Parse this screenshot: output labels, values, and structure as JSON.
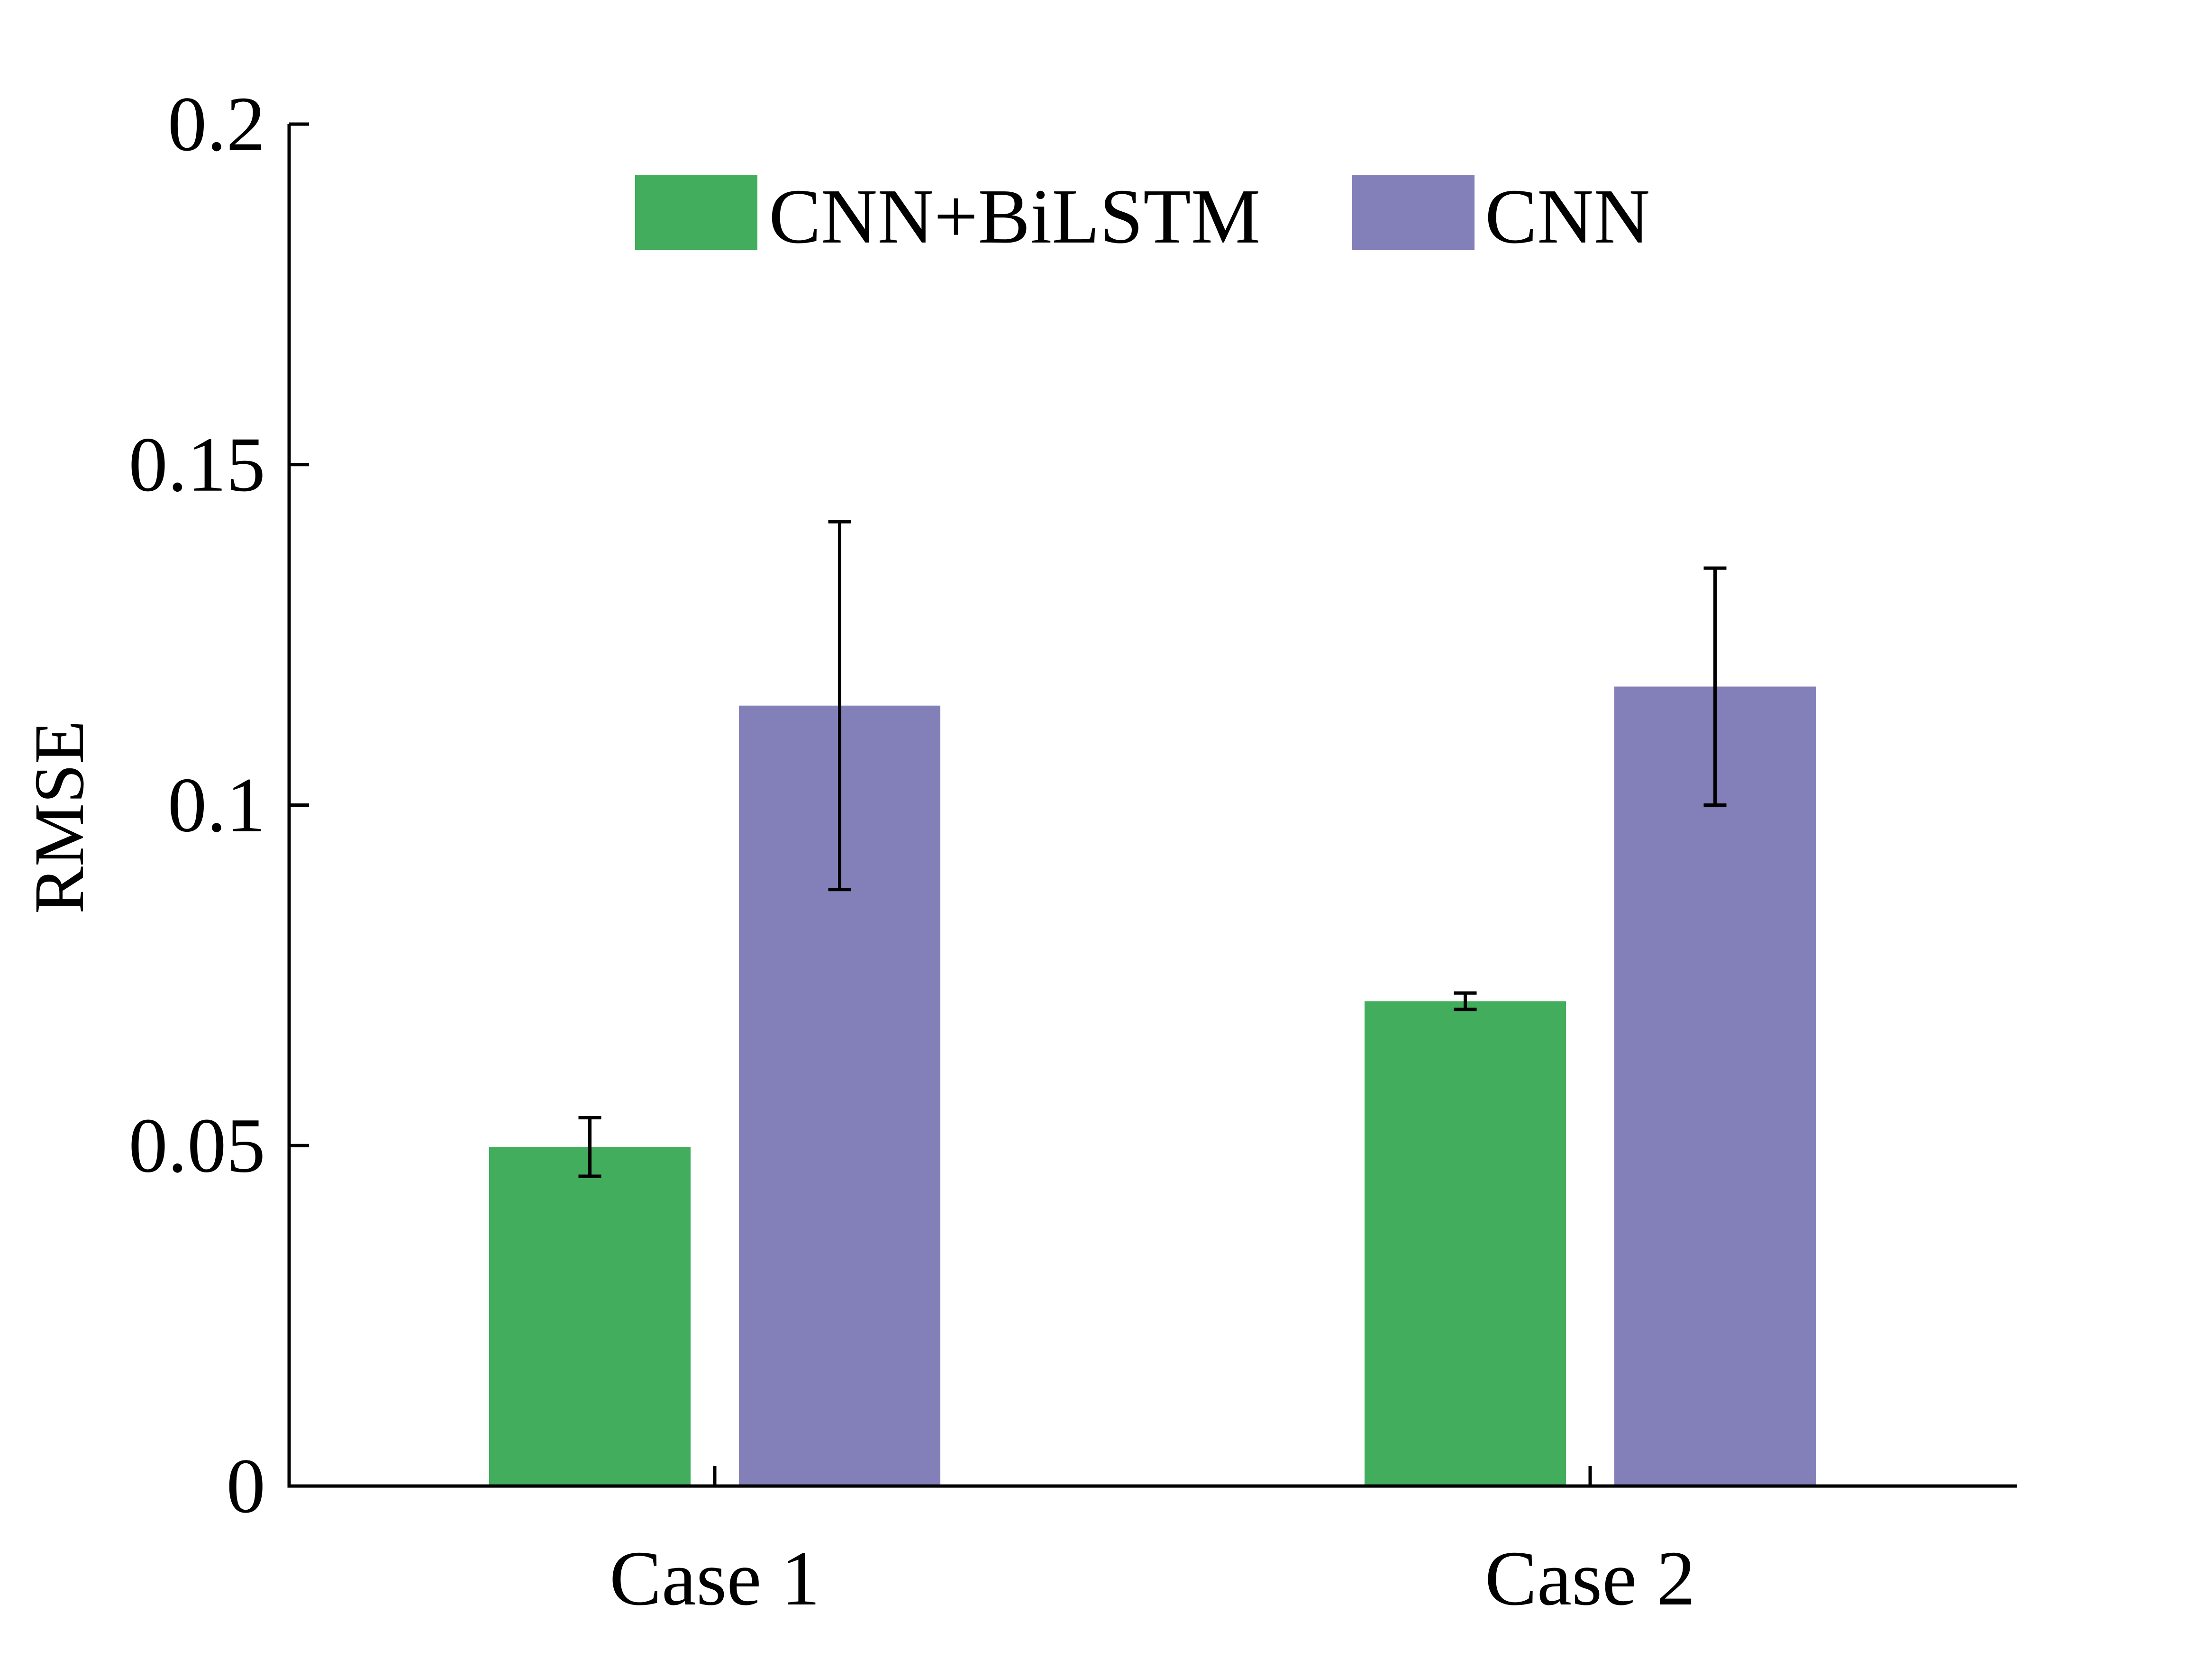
{
  "chart_data": {
    "type": "bar",
    "title": "",
    "xlabel": "",
    "ylabel": "RMSE",
    "categories": [
      "Case 1",
      "Case 2"
    ],
    "ylim": [
      0,
      0.2
    ],
    "yticks": [
      {
        "value": 0,
        "label": "0"
      },
      {
        "value": 0.05,
        "label": "0.05"
      },
      {
        "value": 0.1,
        "label": "0.1"
      },
      {
        "value": 0.15,
        "label": "0.15"
      },
      {
        "value": 0.2,
        "label": "0.2"
      }
    ],
    "series": [
      {
        "name": "CNN+BiLSTM",
        "color": "#42ad5d",
        "values": [
          0.0498,
          0.0712
        ],
        "error": [
          0.0043,
          0.0012
        ]
      },
      {
        "name": "CNN",
        "color": "#837fb8",
        "values": [
          0.1146,
          0.1174
        ],
        "error": [
          0.027,
          0.0174
        ]
      }
    ],
    "error_bars": true,
    "grid": false,
    "legend_position": "top-center"
  }
}
